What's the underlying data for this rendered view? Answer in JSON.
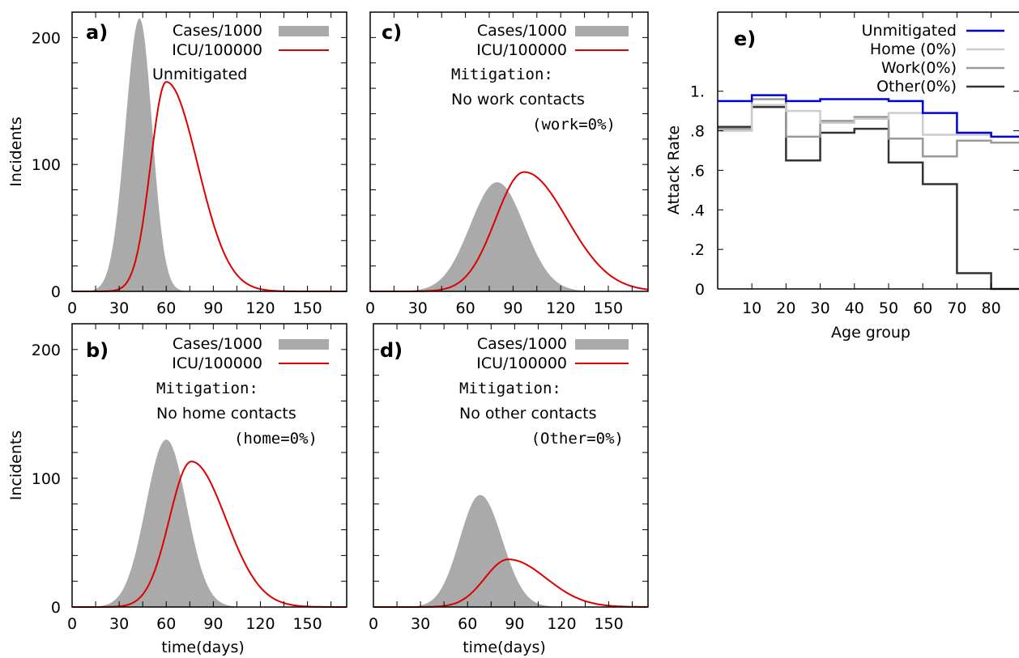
{
  "chart_data": [
    {
      "panel": "a)",
      "type": "area",
      "xlabel": "",
      "ylabel": "Incidents",
      "xlim": [
        0,
        175
      ],
      "ylim": [
        0,
        220
      ],
      "xticks": [
        "0",
        "30",
        "60",
        "90",
        "120",
        "150"
      ],
      "yticks": [
        "0",
        "100",
        "200"
      ],
      "legend": [
        "Cases/1000",
        "ICU/100000"
      ],
      "notes": [
        "Unmitigated"
      ],
      "series": [
        {
          "name": "Cases/1000",
          "kind": "area",
          "color": "#aaaaaa",
          "peak_x": 43,
          "peak_y": 215,
          "sigma_left": 9,
          "sigma_right": 8
        },
        {
          "name": "ICU/100000",
          "kind": "line",
          "color": "#dd0000",
          "peak_x": 60,
          "peak_y": 165,
          "sigma_left": 10,
          "sigma_right": 20
        }
      ]
    },
    {
      "panel": "b)",
      "type": "area",
      "xlabel": "time(days)",
      "ylabel": "Incidents",
      "xlim": [
        0,
        175
      ],
      "ylim": [
        0,
        220
      ],
      "xticks": [
        "0",
        "30",
        "60",
        "90",
        "120",
        "150"
      ],
      "yticks": [
        "0",
        "100",
        "200"
      ],
      "legend": [
        "Cases/1000",
        "ICU/100000"
      ],
      "notes": [
        "Mitigation:",
        "No home contacts",
        "(home=0%)"
      ],
      "series": [
        {
          "name": "Cases/1000",
          "kind": "area",
          "color": "#aaaaaa",
          "peak_x": 60,
          "peak_y": 130,
          "sigma_left": 13,
          "sigma_right": 13
        },
        {
          "name": "ICU/100000",
          "kind": "line",
          "color": "#dd0000",
          "peak_x": 76,
          "peak_y": 113,
          "sigma_left": 14,
          "sigma_right": 22
        }
      ]
    },
    {
      "panel": "c)",
      "type": "area",
      "xlabel": "",
      "ylabel": "",
      "xlim": [
        0,
        175
      ],
      "ylim": [
        0,
        220
      ],
      "xticks": [
        "0",
        "30",
        "60",
        "90",
        "120",
        "150"
      ],
      "yticks": [],
      "legend": [
        "Cases/1000",
        "ICU/100000"
      ],
      "notes": [
        "Mitigation:",
        "No work contacts",
        "(work=0%)"
      ],
      "series": [
        {
          "name": "Cases/1000",
          "kind": "area",
          "color": "#aaaaaa",
          "peak_x": 80,
          "peak_y": 86,
          "sigma_left": 17,
          "sigma_right": 17
        },
        {
          "name": "ICU/100000",
          "kind": "line",
          "color": "#dd0000",
          "peak_x": 97,
          "peak_y": 94,
          "sigma_left": 18,
          "sigma_right": 27
        }
      ]
    },
    {
      "panel": "d)",
      "type": "area",
      "xlabel": "time(days)",
      "ylabel": "",
      "xlim": [
        0,
        175
      ],
      "ylim": [
        0,
        220
      ],
      "xticks": [
        "0",
        "30",
        "60",
        "90",
        "120",
        "150"
      ],
      "yticks": [],
      "legend": [
        "Cases/1000",
        "ICU/100000"
      ],
      "notes": [
        "Mitigation:",
        "No other contacts",
        "(Other=0%)"
      ],
      "series": [
        {
          "name": "Cases/1000",
          "kind": "area",
          "color": "#aaaaaa",
          "peak_x": 68,
          "peak_y": 87,
          "sigma_left": 13,
          "sigma_right": 14
        },
        {
          "name": "ICU/100000",
          "kind": "line",
          "color": "#dd0000",
          "peak_x": 86,
          "peak_y": 37,
          "sigma_left": 15,
          "sigma_right": 24
        }
      ]
    },
    {
      "panel": "e)",
      "type": "line",
      "step": true,
      "xlabel": "Age group",
      "ylabel": "Attack Rate",
      "xlim": [
        0,
        90
      ],
      "ylim": [
        0,
        1.4
      ],
      "xticks": [
        "10",
        "20",
        "30",
        "40",
        "50",
        "60",
        "70",
        "80"
      ],
      "yticks": [
        "0",
        ".2",
        ".4",
        ".6",
        ".8",
        "1."
      ],
      "x": [
        0,
        10,
        20,
        30,
        40,
        50,
        60,
        70,
        80,
        90
      ],
      "series": [
        {
          "name": "Unmitigated",
          "color": "#0000dd",
          "values": [
            0.95,
            0.98,
            0.95,
            0.96,
            0.96,
            0.95,
            0.89,
            0.79,
            0.77,
            0.77
          ]
        },
        {
          "name": "Home (0%)",
          "color": "#cccccc",
          "values": [
            0.8,
            0.93,
            0.9,
            0.84,
            0.86,
            0.89,
            0.78,
            0.78,
            0.77,
            0.77
          ]
        },
        {
          "name": "Work(0%)",
          "color": "#999999",
          "values": [
            0.81,
            0.96,
            0.77,
            0.85,
            0.87,
            0.76,
            0.67,
            0.75,
            0.74,
            0.74
          ]
        },
        {
          "name": "Other(0%)",
          "color": "#333333",
          "values": [
            0.82,
            0.92,
            0.65,
            0.79,
            0.81,
            0.64,
            0.53,
            0.08,
            0.0,
            0.0
          ]
        }
      ]
    }
  ]
}
